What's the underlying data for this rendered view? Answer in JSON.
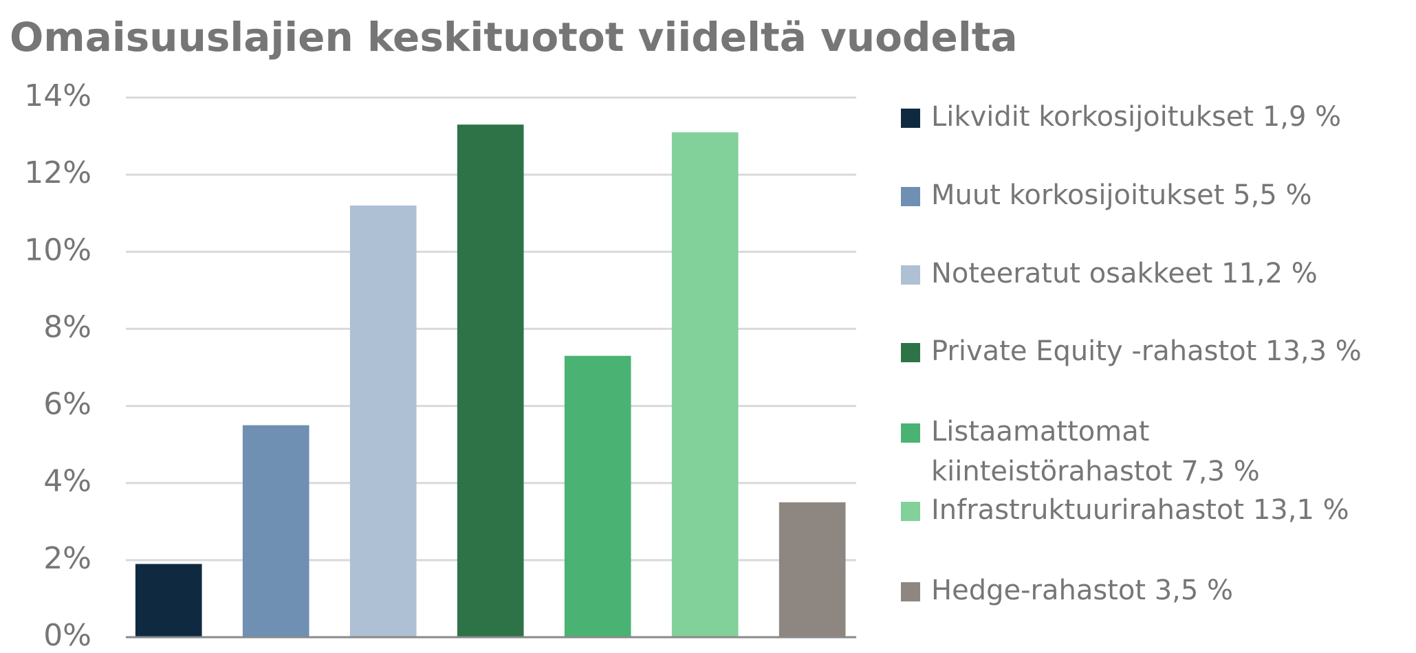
{
  "chart_data": {
    "type": "bar",
    "title": "Omaisuuslajien keskituotot viideltä vuodelta",
    "categories": [
      null
    ],
    "series": [
      {
        "name": "Likvidit korkosijoitukset 1,9 %",
        "color": "#0f2a40",
        "values": [
          1.9
        ]
      },
      {
        "name": "Muut korkosijoitukset 5,5 %",
        "color": "#6f8fb3",
        "values": [
          5.5
        ]
      },
      {
        "name": "Noteeratut osakkeet 11,2 %",
        "color": "#aec0d4",
        "values": [
          11.2
        ]
      },
      {
        "name": "Private Equity -rahastot 13,3 %",
        "color": "#2e7347",
        "values": [
          13.3
        ]
      },
      {
        "name": "Listaamattomat kiinteistörahastot 7,3 %",
        "color": "#4ab273",
        "values": [
          7.3
        ]
      },
      {
        "name": "Infrastruktuurirahastot 13,1 %",
        "color": "#82d09a",
        "values": [
          13.1
        ]
      },
      {
        "name": "Hedge-rahastot 3,5 %",
        "color": "#8e8680",
        "values": [
          3.5
        ]
      }
    ],
    "ylim": [
      0,
      14
    ],
    "yticks": [
      {
        "value": 0,
        "label": "0%"
      },
      {
        "value": 2,
        "label": "2%"
      },
      {
        "value": 4,
        "label": "4%"
      },
      {
        "value": 6,
        "label": "6%"
      },
      {
        "value": 8,
        "label": "8%"
      },
      {
        "value": 10,
        "label": "10%"
      },
      {
        "value": 12,
        "label": "12%"
      },
      {
        "value": 14,
        "label": "14%"
      }
    ],
    "grid": true,
    "legend": "right"
  }
}
